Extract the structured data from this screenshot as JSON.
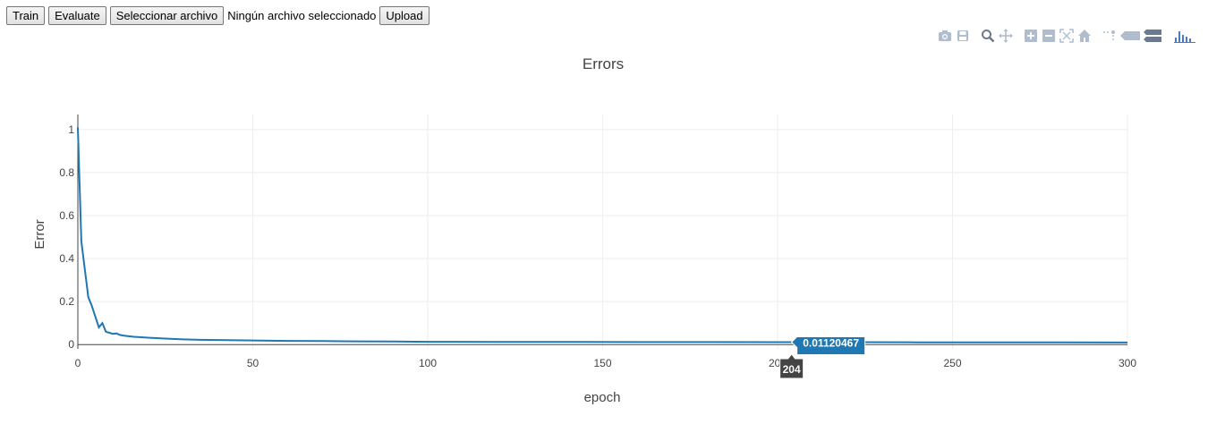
{
  "controls": {
    "train_label": "Train",
    "evaluate_label": "Evaluate",
    "select_file_label": "Seleccionar archivo",
    "file_status": "Ningún archivo seleccionado",
    "upload_label": "Upload"
  },
  "modebar": {
    "icons": [
      "camera-icon",
      "save-icon",
      "zoom-icon",
      "pan-icon",
      "zoom-in-icon",
      "zoom-out-icon",
      "autoscale-icon",
      "reset-axes-icon",
      "spike-lines-icon",
      "hover-closest-icon",
      "hover-compare-icon",
      "plotly-logo-icon"
    ],
    "icon_color": "#b0bdcf",
    "logo_color": "#447adb"
  },
  "chart_data": {
    "type": "line",
    "title": "Errors",
    "xlabel": "epoch",
    "ylabel": "Error",
    "xlim": [
      0,
      300
    ],
    "ylim": [
      -0.02,
      1.07
    ],
    "xticks": [
      0,
      50,
      100,
      150,
      200,
      250,
      300
    ],
    "yticks": [
      0,
      0.2,
      0.4,
      0.6,
      0.8,
      1
    ],
    "ytick_labels": [
      "0",
      "0.2",
      "0.4",
      "0.6",
      "0.8",
      "1"
    ],
    "grid": true,
    "line_color": "#1f77b4",
    "series": [
      {
        "x": [
          0,
          1,
          2,
          3,
          4,
          5,
          6,
          7,
          8,
          9,
          10,
          11,
          12,
          13,
          14,
          16,
          18,
          20,
          25,
          30,
          35,
          40,
          50,
          60,
          70,
          80,
          90,
          100,
          120,
          140,
          160,
          180,
          200,
          204,
          220,
          240,
          260,
          280,
          300
        ],
        "y": [
          1.01,
          0.48,
          0.35,
          0.22,
          0.18,
          0.13,
          0.08,
          0.1,
          0.06,
          0.055,
          0.05,
          0.052,
          0.045,
          0.042,
          0.04,
          0.036,
          0.034,
          0.032,
          0.028,
          0.024,
          0.022,
          0.021,
          0.019,
          0.017,
          0.016,
          0.015,
          0.014,
          0.013,
          0.0125,
          0.012,
          0.0118,
          0.0116,
          0.0113,
          0.01120467,
          0.011,
          0.0105,
          0.01,
          0.0098,
          0.0095
        ]
      }
    ],
    "hover": {
      "x": 204,
      "y_label": "0.01120467",
      "x_label": "204"
    }
  }
}
